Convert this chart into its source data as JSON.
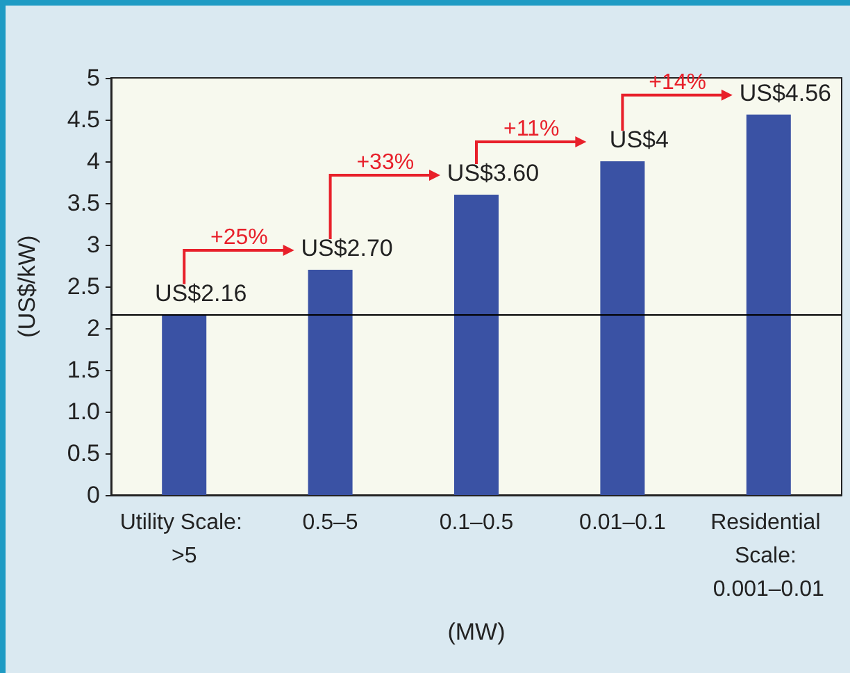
{
  "chart_data": {
    "type": "bar",
    "xlabel": "(MW)",
    "ylabel": "(US$/kW)",
    "categories": [
      "Utility Scale: >5",
      "0.5–5",
      "0.1–0.5",
      "0.01–0.1",
      "Residential Scale: 0.001–0.01"
    ],
    "values": [
      2.16,
      2.7,
      3.6,
      4,
      4.56
    ],
    "value_labels": [
      "US$2.16",
      "US$2.70",
      "US$3.60",
      "US$4",
      "US$4.56"
    ],
    "color": "#3a52a4",
    "ylim": [
      0,
      5
    ],
    "yticks": [
      0,
      0.5,
      {
        "value": 1,
        "label": "1.0"
      },
      1.5,
      2,
      2.5,
      3,
      3.5,
      4,
      4.5,
      5
    ],
    "ref_lines": [
      {
        "axis": "y",
        "value": 2.16,
        "color": "#000000"
      }
    ],
    "annotations": [
      "+25%",
      "+33%",
      "+11%",
      "+14%"
    ],
    "grid": false
  }
}
